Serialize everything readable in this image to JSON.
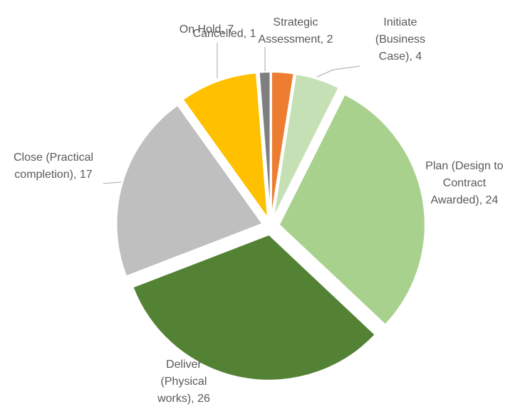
{
  "chart_data": {
    "type": "pie",
    "categories": [
      "Strategic Assessment",
      "Initiate (Business Case)",
      "Plan (Design to Contract Awarded)",
      "Deliver (Physical works)",
      "Close (Practical completion)",
      "On Hold",
      "Cancelled"
    ],
    "values": [
      2,
      4,
      24,
      26,
      17,
      7,
      1
    ],
    "value_labels": [
      "Strategic Assessment, 2",
      "Initiate (Business Case), 4",
      "Plan (Design to Contract Awarded), 24",
      "Deliver (Physical works), 26",
      "Close (Practical completion), 17",
      "On Hold, 7",
      "Cancelled, 1"
    ],
    "colors": [
      "#ED7D31",
      "#C5E0B4",
      "#A9D18E",
      "#548235",
      "#BFBFBF",
      "#FFC000",
      "#7F7F7F"
    ]
  }
}
